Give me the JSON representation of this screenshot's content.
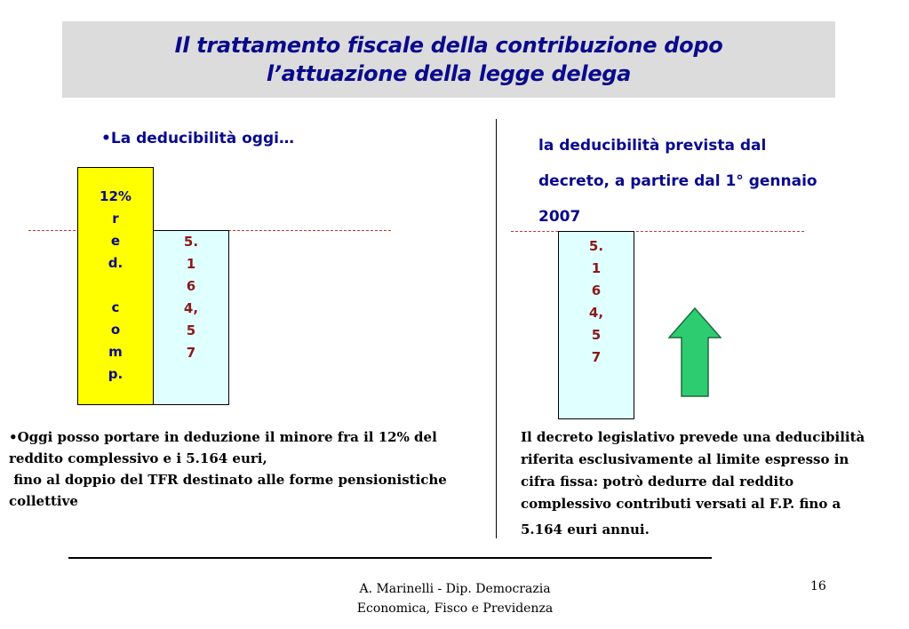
{
  "slide": {
    "title": {
      "line1": "Il trattamento fiscale della contribuzione dopo",
      "line2": "l’attuazione della legge delega"
    },
    "left": {
      "heading": "•La deducibilità oggi…",
      "yellow_bar_lines": [
        "12%",
        "r",
        "e",
        "d.",
        "",
        "c",
        "o",
        "m",
        "p."
      ],
      "cyan_bar_lines": [
        "5.",
        "1",
        "6",
        "4,",
        "5",
        "7"
      ],
      "description": [
        "•Oggi posso portare in deduzione  il minore fra il 12% del",
        "reddito  complessivo e i 5.164 euri,",
        " fino al doppio del TFR destinato alle forme pensionistiche",
        "collettive"
      ]
    },
    "right": {
      "heading_lines": [
        "la deducibilità prevista dal",
        "decreto, a partire dal 1° gennaio",
        "2007"
      ],
      "cyan_bar_lines": [
        "5.",
        "1",
        "6",
        "4,",
        "5",
        "7"
      ],
      "description": [
        "Il decreto legislativo prevede una deducibilità",
        "riferita esclusivamente al limite espresso in",
        "cifra fissa: potrò dedurre dal reddito",
        "complessivo contributi versati al F.P. fino a",
        "5.164 euri annui."
      ]
    },
    "footer": {
      "line1": "A. Marinelli - Dip. Democrazia",
      "line2": "Economica,  Fisco e Previdenza"
    },
    "page_number": "16"
  },
  "colors": {
    "title_text": "#0a0a8c",
    "title_background": "#dcdcdc",
    "yellow_bar": "#ffff00",
    "cyan_bar": "#e0ffff",
    "bar_value_text": "#8b1a1a",
    "dashed_line": "#c0392b",
    "arrow_fill": "#2ecc71"
  },
  "icons": {
    "arrow": "up-arrow-icon"
  }
}
